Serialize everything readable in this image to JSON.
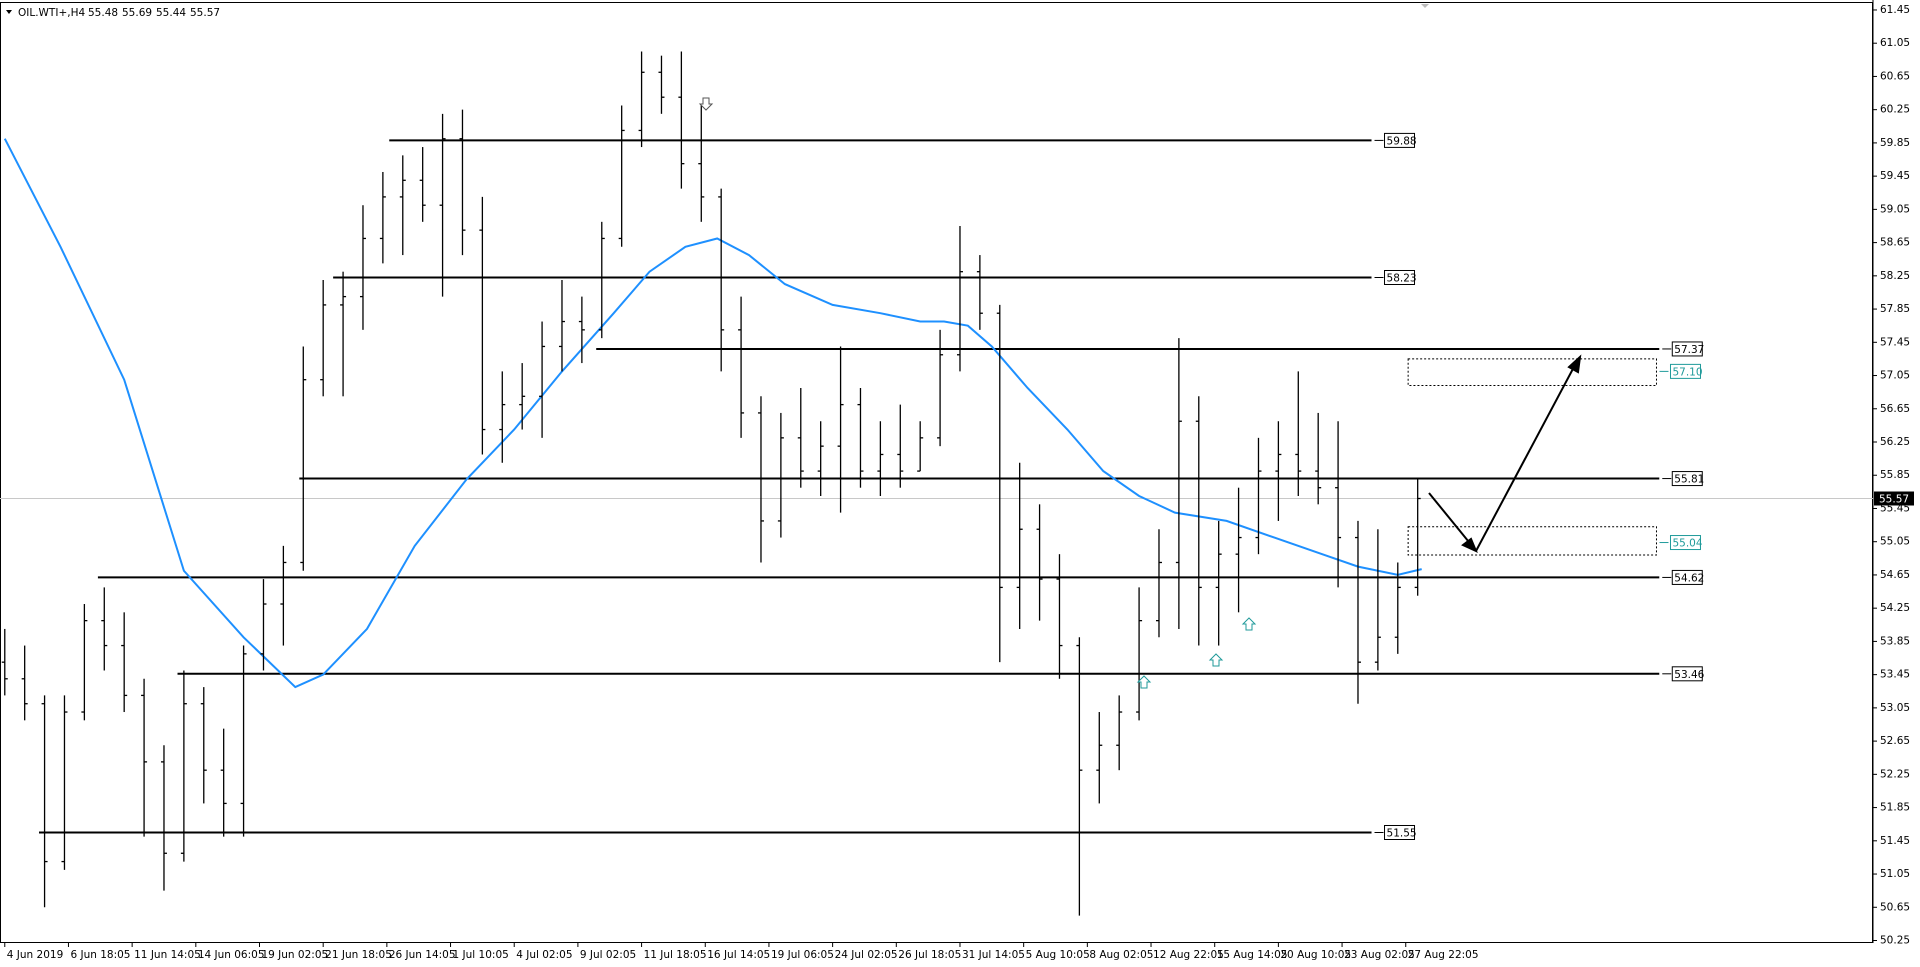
{
  "chart_data": {
    "type": "ohlc",
    "header": "OIL.WTI+,H4",
    "header_ohlc": [
      55.48,
      55.69,
      55.44,
      55.57
    ],
    "color": "#000000",
    "x": [
      0,
      5,
      10,
      15,
      20,
      25,
      30,
      35,
      40,
      45,
      50,
      55,
      60,
      65,
      70,
      75,
      80,
      85,
      90,
      95,
      100,
      105,
      110,
      115,
      120,
      125,
      130,
      135,
      140,
      145,
      150,
      155,
      160,
      165,
      170,
      175,
      180,
      185,
      190,
      195,
      200,
      205,
      210,
      215,
      220,
      225,
      230,
      235,
      240,
      245,
      250,
      255,
      260,
      265,
      270,
      275,
      280,
      285,
      290,
      295,
      300,
      305,
      310,
      315,
      320,
      325,
      330,
      335,
      340,
      345,
      350,
      355
    ],
    "open": [
      53.6,
      53.4,
      53.1,
      51.2,
      53.0,
      54.1,
      53.8,
      53.2,
      52.4,
      51.3,
      53.1,
      52.3,
      51.9,
      53.7,
      54.3,
      54.8,
      57.0,
      57.9,
      58.0,
      58.7,
      59.2,
      59.4,
      59.1,
      59.9,
      58.8,
      56.4,
      56.7,
      56.8,
      57.4,
      57.7,
      57.6,
      58.7,
      60.0,
      60.7,
      60.4,
      59.6,
      59.2,
      57.6,
      56.6,
      55.3,
      56.3,
      55.9,
      56.2,
      56.7,
      55.9,
      56.1,
      55.9,
      56.3,
      57.3,
      58.3,
      57.8,
      54.5,
      55.2,
      54.6,
      53.8,
      52.3,
      52.6,
      53.0,
      54.1,
      54.8,
      56.5,
      54.5,
      54.9,
      55.1,
      55.9,
      56.1,
      55.9,
      55.7,
      55.1,
      53.6,
      53.9,
      54.5
    ],
    "high": [
      54.0,
      53.8,
      53.2,
      53.2,
      54.3,
      54.5,
      54.2,
      53.4,
      52.6,
      53.5,
      53.3,
      52.8,
      53.8,
      54.6,
      55.0,
      57.4,
      58.2,
      58.3,
      59.1,
      59.5,
      59.7,
      59.8,
      60.2,
      60.25,
      59.2,
      57.1,
      57.2,
      57.7,
      58.2,
      58.0,
      58.9,
      60.3,
      60.95,
      60.9,
      60.95,
      60.3,
      59.3,
      58.0,
      56.8,
      56.6,
      56.9,
      56.5,
      57.4,
      56.9,
      56.5,
      56.7,
      56.5,
      57.6,
      58.85,
      58.5,
      57.9,
      56.0,
      55.5,
      54.9,
      53.9,
      53.0,
      53.2,
      54.5,
      55.2,
      57.5,
      56.8,
      55.3,
      55.7,
      56.3,
      56.5,
      57.1,
      56.6,
      56.5,
      55.3,
      55.2,
      54.8,
      55.8
    ],
    "low": [
      53.2,
      52.9,
      50.65,
      51.1,
      52.9,
      53.5,
      53.0,
      51.5,
      50.85,
      51.2,
      51.9,
      51.5,
      51.5,
      53.5,
      53.8,
      54.7,
      56.8,
      56.8,
      57.6,
      58.4,
      58.5,
      58.9,
      58.0,
      58.5,
      56.1,
      56.0,
      56.4,
      56.3,
      57.1,
      57.2,
      57.5,
      58.6,
      59.8,
      60.2,
      59.3,
      58.9,
      57.1,
      56.3,
      54.8,
      55.1,
      55.7,
      55.6,
      55.4,
      55.7,
      55.6,
      55.7,
      55.9,
      56.2,
      57.1,
      57.6,
      53.6,
      54.0,
      54.1,
      53.4,
      50.55,
      51.9,
      52.3,
      52.9,
      53.9,
      54.0,
      53.8,
      53.8,
      54.2,
      54.9,
      55.3,
      55.6,
      55.5,
      54.5,
      53.1,
      53.5,
      53.7,
      54.4
    ],
    "close": [
      53.4,
      53.1,
      51.2,
      53.0,
      54.1,
      53.8,
      53.2,
      52.4,
      51.3,
      53.1,
      52.3,
      51.9,
      53.7,
      54.3,
      54.8,
      57.0,
      57.9,
      58.0,
      58.7,
      59.2,
      59.4,
      59.1,
      59.9,
      58.8,
      56.4,
      56.7,
      56.8,
      57.4,
      57.7,
      57.6,
      58.7,
      60.0,
      60.7,
      60.4,
      59.6,
      59.2,
      57.6,
      56.6,
      55.3,
      56.3,
      55.9,
      56.2,
      56.7,
      55.9,
      56.1,
      55.9,
      56.3,
      57.3,
      58.3,
      57.8,
      54.5,
      55.2,
      54.6,
      53.8,
      52.3,
      52.6,
      53.0,
      54.1,
      54.8,
      56.5,
      54.5,
      54.9,
      55.1,
      55.9,
      56.1,
      55.9,
      55.7,
      55.1,
      53.6,
      53.9,
      54.5,
      55.57
    ],
    "moving_average": {
      "color": "#1e90ff",
      "x": [
        0,
        14,
        30,
        45,
        60,
        73,
        80,
        91,
        103,
        116,
        128,
        140,
        153,
        162,
        171,
        179,
        187,
        196,
        208,
        220,
        230,
        236,
        242,
        248,
        257,
        267,
        276,
        285,
        294,
        307,
        319,
        331,
        340,
        350,
        356
      ],
      "values": [
        59.9,
        58.6,
        57.0,
        54.7,
        53.9,
        53.3,
        53.45,
        54.0,
        55.0,
        55.8,
        56.4,
        57.1,
        57.8,
        58.3,
        58.6,
        58.7,
        58.5,
        58.15,
        57.9,
        57.8,
        57.7,
        57.7,
        57.65,
        57.4,
        56.9,
        56.4,
        55.9,
        55.6,
        55.4,
        55.3,
        55.1,
        54.9,
        54.75,
        54.65,
        54.72
      ]
    },
    "levels": [
      {
        "value": 59.88,
        "x": [
          96.6,
          343.4
        ]
      },
      {
        "value": 58.23,
        "x": [
          82.5,
          343.4
        ]
      },
      {
        "value": 57.37,
        "x": [
          148.6,
          415.7
        ]
      },
      {
        "value": 55.81,
        "x": [
          74,
          415.7
        ]
      },
      {
        "value": 54.62,
        "x": [
          23.4,
          415.7
        ]
      },
      {
        "value": 53.46,
        "x": [
          43.4,
          415.7
        ]
      },
      {
        "value": 51.55,
        "x": [
          8.6,
          343.4
        ]
      }
    ],
    "zones": [
      {
        "low": 56.93,
        "high": 57.25,
        "x": [
          352.6,
          415
        ],
        "level": {
          "value": 57.1,
          "label": "57.10"
        },
        "color": "#1f9a9a"
      },
      {
        "low": 54.89,
        "high": 55.23,
        "x": [
          352.6,
          415
        ],
        "level": {
          "value": 55.04,
          "label": "55.04"
        },
        "color": "#1f9a9a"
      }
    ],
    "last_price": 55.57,
    "xlim": [
      -1.2,
      469.4
    ],
    "ylim": [
      50.22,
      61.57
    ],
    "yticks": [
      61.45,
      61.05,
      60.65,
      60.25,
      59.85,
      59.45,
      59.05,
      58.65,
      58.25,
      57.85,
      57.45,
      57.05,
      56.65,
      56.25,
      55.85,
      55.45,
      55.05,
      54.65,
      54.25,
      53.85,
      53.45,
      53.05,
      52.65,
      52.25,
      51.85,
      51.45,
      51.05,
      50.65,
      50.25
    ],
    "xticks": [
      {
        "value": 0,
        "label": "4 Jun 2019"
      },
      {
        "value": 16,
        "label": "6 Jun 18:05"
      },
      {
        "value": 32,
        "label": "11 Jun 14:05"
      },
      {
        "value": 48,
        "label": "14 Jun 06:05"
      },
      {
        "value": 64,
        "label": "19 Jun 02:05"
      },
      {
        "value": 80,
        "label": "21 Jun 18:05"
      },
      {
        "value": 96,
        "label": "26 Jun 14:05"
      },
      {
        "value": 112,
        "label": "1 Jul 10:05"
      },
      {
        "value": 128,
        "label": "4 Jul 02:05"
      },
      {
        "value": 144,
        "label": "9 Jul 02:05"
      },
      {
        "value": 160,
        "label": "11 Jul 18:05"
      },
      {
        "value": 176,
        "label": "16 Jul 14:05"
      },
      {
        "value": 192,
        "label": "19 Jul 06:05"
      },
      {
        "value": 208,
        "label": "24 Jul 02:05"
      },
      {
        "value": 224,
        "label": "26 Jul 18:05"
      },
      {
        "value": 240,
        "label": "31 Jul 14:05"
      },
      {
        "value": 256,
        "label": "5 Aug 10:05"
      },
      {
        "value": 272,
        "label": "8 Aug 02:05"
      },
      {
        "value": 288,
        "label": "12 Aug 22:05"
      },
      {
        "value": 304,
        "label": "15 Aug 14:05"
      },
      {
        "value": 320,
        "label": "20 Aug 10:05"
      },
      {
        "value": 336,
        "label": "23 Aug 02:05"
      },
      {
        "value": 352,
        "label": "27 Aug 22:05"
      }
    ]
  }
}
